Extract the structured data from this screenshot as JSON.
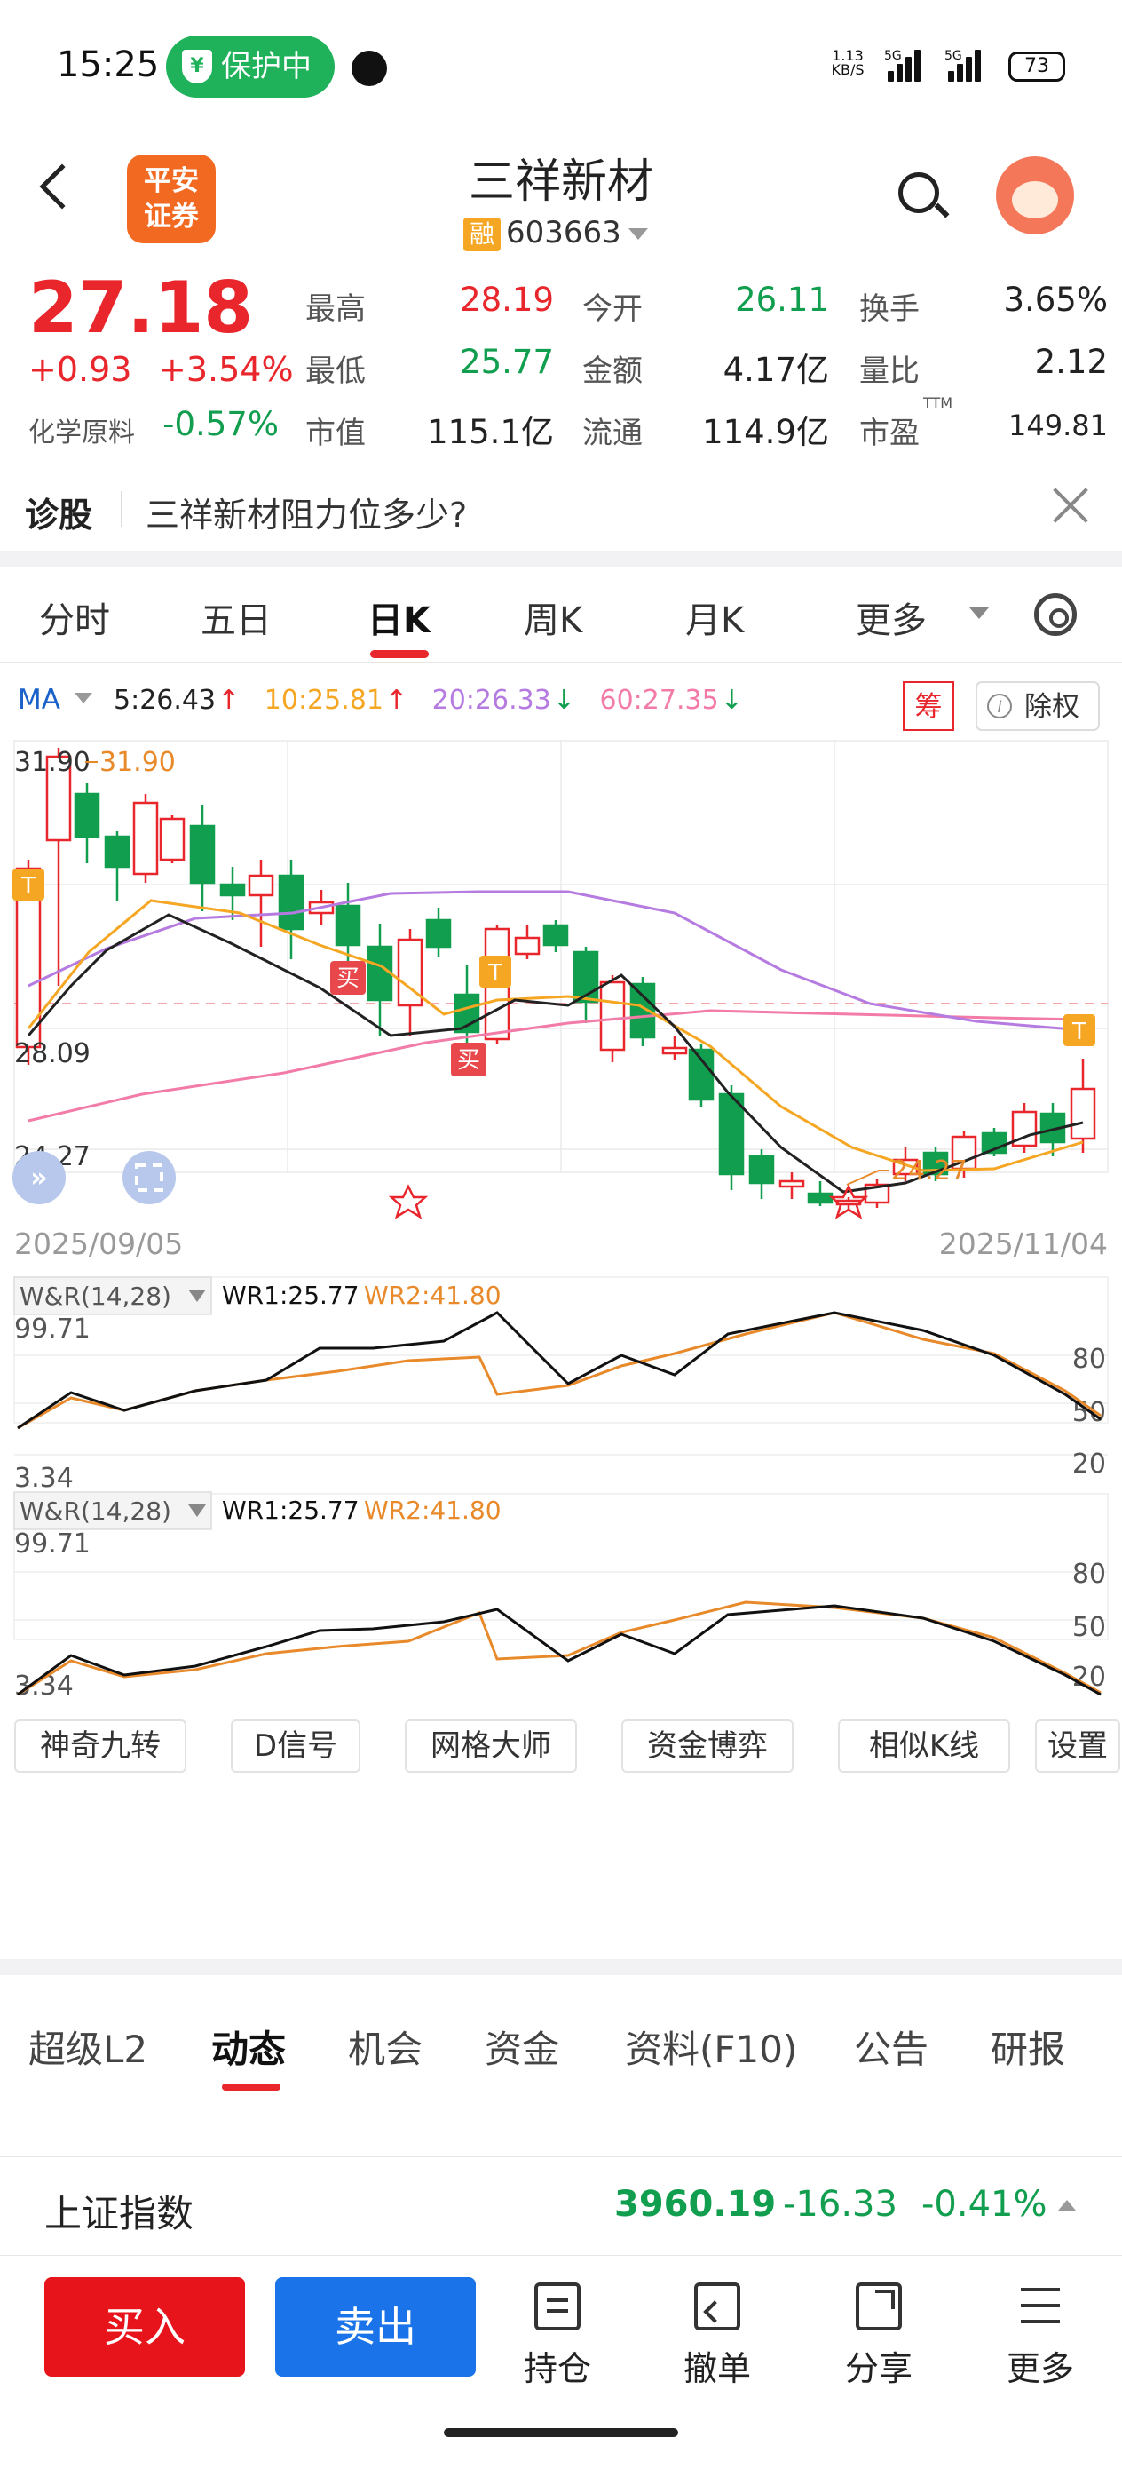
{
  "status_bar": {
    "time": "15:25",
    "protection_label": "保护中",
    "protection_badge_icon": "¥",
    "net_speed_value": "1.13",
    "net_speed_unit": "KB/S",
    "sig1": "5G",
    "sig2": "5G",
    "battery": "73"
  },
  "header": {
    "logo_line1": "平安",
    "logo_line2": "证券",
    "stock_name": "三祥新材",
    "margin_badge": "融",
    "stock_code": "603663"
  },
  "quote": {
    "price": "27.18",
    "change": "+0.93",
    "change_pct": "+3.54%",
    "sector_label": "化学原料",
    "sector_change": "-0.57%",
    "items": [
      {
        "label": "最高",
        "value": "28.19"
      },
      {
        "label": "今开",
        "value": "26.11"
      },
      {
        "label": "换手",
        "value": "3.65%"
      },
      {
        "label": "最低",
        "value": "25.77"
      },
      {
        "label": "金额",
        "value": "4.17亿"
      },
      {
        "label": "量比",
        "value": "2.12"
      },
      {
        "label": "市值",
        "value": "115.1亿"
      },
      {
        "label": "流通",
        "value": "114.9亿"
      },
      {
        "label": "市盈",
        "value": "149.81"
      }
    ],
    "pe_superscript": "TTM"
  },
  "diagnosis": {
    "label": "诊股",
    "question": "三祥新材阻力位多少?"
  },
  "period_tabs": [
    "分时",
    "五日",
    "日K",
    "周K",
    "月K",
    "更多"
  ],
  "active_period_index": 2,
  "chart": {
    "ma_label": "MA",
    "ma_values": [
      "5:26.43",
      "10:25.81",
      "20:26.33",
      "60:27.35"
    ],
    "ma_arrows": [
      "↑",
      "↑",
      "↓",
      "↓"
    ],
    "ma_colors": [
      "#222222",
      "#f5a623",
      "#b57be0",
      "#f27ba8"
    ],
    "chips_label": "筹",
    "exrights_label": "除权",
    "exrights_icon": "i",
    "y_high": "31.90",
    "high_marker": "31.90",
    "y_mid": "28.09",
    "y_low": "24.27",
    "low_marker": "24.27",
    "date_start": "2025/09/05",
    "date_end": "2025/11/04",
    "buy_marker": "买",
    "t_marker": "T"
  },
  "indicators": [
    {
      "name": "W&R(14,28)",
      "wr1": "WR1:25.77",
      "wr2": "WR2:41.80",
      "top": "99.71",
      "bottom": "3.34",
      "levels": [
        "80",
        "50",
        "20"
      ]
    },
    {
      "name": "W&R(14,28)",
      "wr1": "WR1:25.77",
      "wr2": "WR2:41.80",
      "top": "99.71",
      "bottom": "3.34",
      "levels": [
        "80",
        "50",
        "20"
      ]
    }
  ],
  "tools": [
    "神奇九转",
    "D信号",
    "网格大师",
    "资金博弈",
    "相似K线",
    "设置"
  ],
  "bottom_tabs": [
    "超级L2",
    "动态",
    "机会",
    "资金",
    "资料(F10)",
    "公告",
    "研报"
  ],
  "active_bottom_tab_index": 1,
  "index_bar": {
    "name": "上证指数",
    "value": "3960.19",
    "change": "-16.33",
    "change_pct": "-0.41%"
  },
  "actions": {
    "buy": "买入",
    "sell": "卖出",
    "holdings": "持仓",
    "cancel": "撤单",
    "share": "分享",
    "more": "更多"
  },
  "colors": {
    "up": "#e8262b",
    "down": "#119e4e",
    "buy_button": "#e8141b",
    "sell_button": "#1a73e8",
    "ma5": "#222222",
    "ma10": "#f5a623",
    "ma20": "#b57be0",
    "ma60": "#f27ba8",
    "wr1": "#111111",
    "wr2": "#e8892a"
  }
}
